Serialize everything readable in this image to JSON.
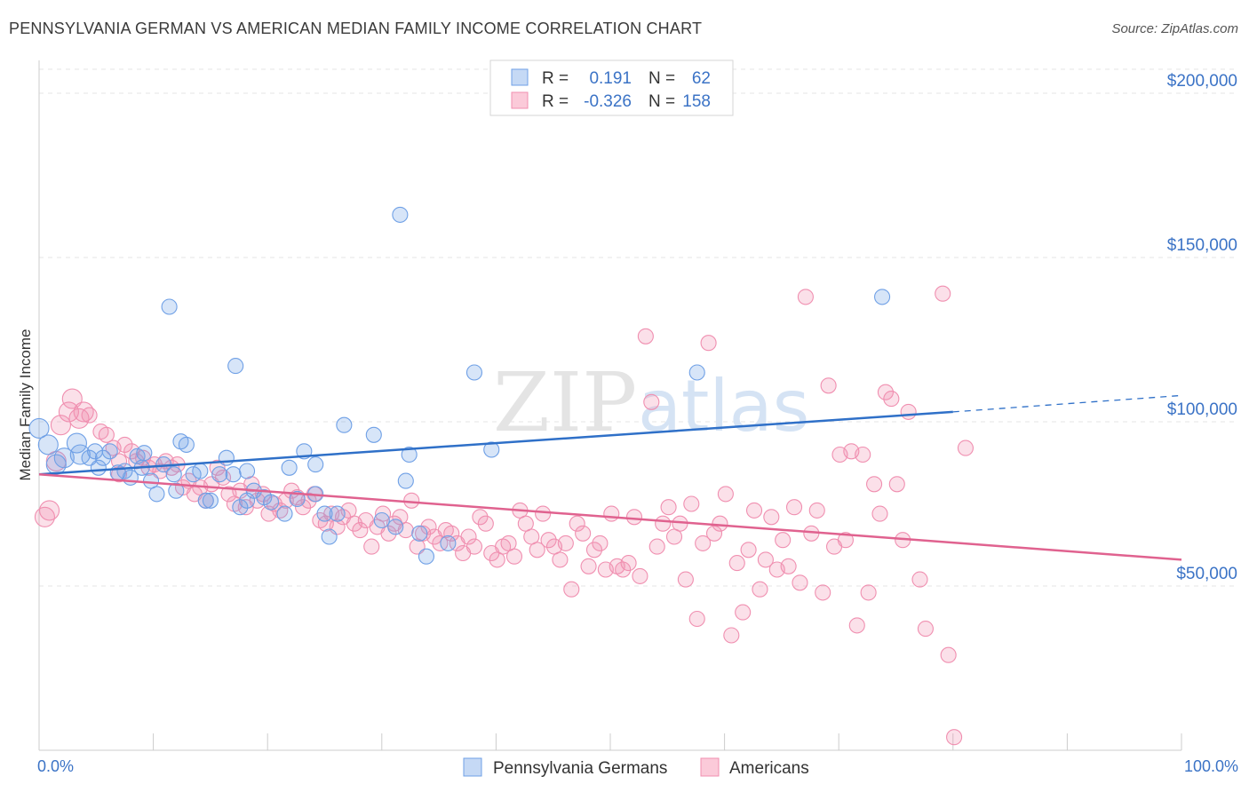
{
  "header": {
    "title": "PENNSYLVANIA GERMAN VS AMERICAN MEDIAN FAMILY INCOME CORRELATION CHART",
    "source": "Source: ZipAtlas.com"
  },
  "watermark": {
    "part1": "ZIP",
    "part2": "atlas"
  },
  "stats_legend": {
    "rows": [
      {
        "r_label": "R =",
        "r_value": "0.191",
        "n_label": "N =",
        "n_value": "62",
        "color": "#6fa0e6"
      },
      {
        "r_label": "R =",
        "r_value": "-0.326",
        "n_label": "N =",
        "n_value": "158",
        "color": "#f08fb0"
      }
    ]
  },
  "chart_data": {
    "type": "scatter",
    "title": "PENNSYLVANIA GERMAN VS AMERICAN MEDIAN FAMILY INCOME CORRELATION CHART",
    "xlabel": "",
    "ylabel": "Median Family Income",
    "xlim": [
      0,
      100
    ],
    "ylim": [
      0,
      210000
    ],
    "x_tick_labels": [
      "0.0%",
      "100.0%"
    ],
    "y_ticks": [
      50000,
      100000,
      150000,
      200000
    ],
    "y_tick_labels": [
      "$50,000",
      "$100,000",
      "$150,000",
      "$200,000"
    ],
    "grid": true,
    "legend_position": "bottom-center",
    "series": [
      {
        "name": "Pennsylvania Germans",
        "color": "#6fa0e6",
        "trend": {
          "x": [
            0,
            80
          ],
          "y": [
            84000,
            103000
          ],
          "dashed_extension_x": [
            80,
            100
          ],
          "dashed_extension_y": [
            103000,
            108000
          ]
        },
        "points": [
          [
            0,
            98000
          ],
          [
            0.8,
            93000
          ],
          [
            1.5,
            87000
          ],
          [
            2.2,
            89000
          ],
          [
            3.3,
            93500
          ],
          [
            3.6,
            90000
          ],
          [
            4.4,
            89000
          ],
          [
            4.9,
            91000
          ],
          [
            5.2,
            86000
          ],
          [
            5.6,
            89000
          ],
          [
            6.2,
            91000
          ],
          [
            6.9,
            84500
          ],
          [
            7.5,
            85000
          ],
          [
            8.0,
            83000
          ],
          [
            8.6,
            89500
          ],
          [
            9.2,
            90500
          ],
          [
            9.8,
            82000
          ],
          [
            10.3,
            78000
          ],
          [
            10.9,
            87000
          ],
          [
            11.4,
            135000
          ],
          [
            11.8,
            84000
          ],
          [
            12.4,
            94000
          ],
          [
            12.9,
            93000
          ],
          [
            13.5,
            84000
          ],
          [
            14.1,
            85000
          ],
          [
            14.6,
            76000
          ],
          [
            15.0,
            76000
          ],
          [
            15.8,
            84000
          ],
          [
            16.4,
            89000
          ],
          [
            17.0,
            84000
          ],
          [
            17.2,
            117000
          ],
          [
            17.6,
            74000
          ],
          [
            18.2,
            85000
          ],
          [
            18.8,
            79000
          ],
          [
            19.7,
            77000
          ],
          [
            20.3,
            75500
          ],
          [
            21.5,
            72000
          ],
          [
            21.9,
            86000
          ],
          [
            22.6,
            76500
          ],
          [
            23.2,
            91000
          ],
          [
            24.2,
            87000
          ],
          [
            24.2,
            78000
          ],
          [
            25.0,
            72000
          ],
          [
            25.4,
            65000
          ],
          [
            26.1,
            72000
          ],
          [
            26.7,
            99000
          ],
          [
            29.3,
            96000
          ],
          [
            30.0,
            70000
          ],
          [
            31.2,
            68000
          ],
          [
            31.6,
            163000
          ],
          [
            32.1,
            82000
          ],
          [
            32.4,
            90000
          ],
          [
            33.3,
            66000
          ],
          [
            33.9,
            59000
          ],
          [
            35.8,
            63000
          ],
          [
            38.1,
            115000
          ],
          [
            39.6,
            91500
          ],
          [
            57.6,
            115000
          ],
          [
            73.8,
            138000
          ],
          [
            18.2,
            76000
          ],
          [
            9.0,
            86000
          ],
          [
            12.0,
            79000
          ]
        ]
      },
      {
        "name": "Americans",
        "color": "#f08fb0",
        "trend": {
          "x": [
            0,
            100
          ],
          "y": [
            84000,
            58000
          ]
        },
        "points": [
          [
            0.5,
            71000
          ],
          [
            0.9,
            73000
          ],
          [
            1.5,
            88000
          ],
          [
            1.9,
            99000
          ],
          [
            2.6,
            103000
          ],
          [
            2.9,
            107000
          ],
          [
            3.5,
            101000
          ],
          [
            3.9,
            103000
          ],
          [
            4.4,
            102000
          ],
          [
            5.4,
            97000
          ],
          [
            5.9,
            96000
          ],
          [
            6.5,
            92000
          ],
          [
            7.0,
            88000
          ],
          [
            7.5,
            93000
          ],
          [
            8.1,
            91000
          ],
          [
            8.5,
            88000
          ],
          [
            9.1,
            89000
          ],
          [
            9.6,
            86000
          ],
          [
            10.1,
            87000
          ],
          [
            10.6,
            85000
          ],
          [
            11.1,
            88000
          ],
          [
            11.6,
            86000
          ],
          [
            12.1,
            87000
          ],
          [
            12.6,
            80000
          ],
          [
            13.1,
            82000
          ],
          [
            13.6,
            78000
          ],
          [
            14.1,
            80000
          ],
          [
            14.6,
            76000
          ],
          [
            15.1,
            81000
          ],
          [
            15.6,
            86000
          ],
          [
            16.1,
            83000
          ],
          [
            16.6,
            78000
          ],
          [
            17.1,
            75000
          ],
          [
            17.6,
            79000
          ],
          [
            18.1,
            74000
          ],
          [
            18.6,
            81000
          ],
          [
            19.1,
            76000
          ],
          [
            19.6,
            78000
          ],
          [
            20.1,
            72000
          ],
          [
            20.6,
            75000
          ],
          [
            21.1,
            73000
          ],
          [
            21.6,
            76000
          ],
          [
            22.1,
            79000
          ],
          [
            22.6,
            77000
          ],
          [
            23.1,
            74000
          ],
          [
            23.6,
            76000
          ],
          [
            24.1,
            78000
          ],
          [
            24.6,
            70000
          ],
          [
            25.1,
            69000
          ],
          [
            25.6,
            72000
          ],
          [
            26.1,
            68000
          ],
          [
            26.6,
            71000
          ],
          [
            27.1,
            73000
          ],
          [
            27.6,
            69000
          ],
          [
            28.1,
            67000
          ],
          [
            28.6,
            70000
          ],
          [
            29.1,
            62000
          ],
          [
            29.6,
            68000
          ],
          [
            30.1,
            72000
          ],
          [
            30.6,
            66000
          ],
          [
            31.1,
            69000
          ],
          [
            31.6,
            71000
          ],
          [
            32.1,
            67000
          ],
          [
            32.6,
            76000
          ],
          [
            33.1,
            62000
          ],
          [
            33.6,
            66000
          ],
          [
            34.1,
            68000
          ],
          [
            34.6,
            65000
          ],
          [
            35.1,
            63000
          ],
          [
            35.6,
            67000
          ],
          [
            36.1,
            66000
          ],
          [
            36.6,
            63000
          ],
          [
            37.1,
            60000
          ],
          [
            37.6,
            65000
          ],
          [
            38.1,
            62000
          ],
          [
            38.6,
            71000
          ],
          [
            39.1,
            69000
          ],
          [
            39.6,
            60000
          ],
          [
            40.1,
            58000
          ],
          [
            40.6,
            62000
          ],
          [
            41.1,
            63000
          ],
          [
            41.6,
            59000
          ],
          [
            42.1,
            73000
          ],
          [
            42.6,
            69000
          ],
          [
            43.1,
            65000
          ],
          [
            43.6,
            61000
          ],
          [
            44.1,
            72000
          ],
          [
            44.6,
            64000
          ],
          [
            45.1,
            62000
          ],
          [
            45.6,
            58000
          ],
          [
            46.1,
            63000
          ],
          [
            46.6,
            49000
          ],
          [
            47.1,
            69000
          ],
          [
            47.6,
            66000
          ],
          [
            48.1,
            56000
          ],
          [
            48.6,
            61000
          ],
          [
            49.1,
            63000
          ],
          [
            49.6,
            55000
          ],
          [
            50.1,
            72000
          ],
          [
            50.6,
            56000
          ],
          [
            51.1,
            55000
          ],
          [
            51.6,
            57000
          ],
          [
            52.1,
            71000
          ],
          [
            52.6,
            53000
          ],
          [
            53.1,
            126000
          ],
          [
            53.6,
            106000
          ],
          [
            54.1,
            62000
          ],
          [
            54.6,
            69000
          ],
          [
            55.1,
            74000
          ],
          [
            55.6,
            65000
          ],
          [
            56.1,
            69000
          ],
          [
            56.6,
            52000
          ],
          [
            57.1,
            75000
          ],
          [
            57.6,
            40000
          ],
          [
            58.1,
            63000
          ],
          [
            58.6,
            124000
          ],
          [
            59.1,
            66000
          ],
          [
            59.6,
            69000
          ],
          [
            60.1,
            78000
          ],
          [
            60.6,
            35000
          ],
          [
            61.1,
            57000
          ],
          [
            61.6,
            42000
          ],
          [
            62.1,
            61000
          ],
          [
            62.6,
            73000
          ],
          [
            63.1,
            49000
          ],
          [
            63.6,
            58000
          ],
          [
            64.1,
            71000
          ],
          [
            64.6,
            55000
          ],
          [
            65.1,
            64000
          ],
          [
            65.6,
            56000
          ],
          [
            66.1,
            74000
          ],
          [
            66.6,
            51000
          ],
          [
            67.1,
            138000
          ],
          [
            67.6,
            66000
          ],
          [
            68.1,
            73000
          ],
          [
            68.6,
            48000
          ],
          [
            69.1,
            111000
          ],
          [
            69.6,
            62000
          ],
          [
            70.1,
            90000
          ],
          [
            70.6,
            64000
          ],
          [
            71.1,
            91000
          ],
          [
            71.6,
            38000
          ],
          [
            72.1,
            90000
          ],
          [
            72.6,
            48000
          ],
          [
            73.1,
            81000
          ],
          [
            73.6,
            72000
          ],
          [
            74.1,
            109000
          ],
          [
            74.6,
            107000
          ],
          [
            75.1,
            81000
          ],
          [
            75.6,
            64000
          ],
          [
            76.1,
            103000
          ],
          [
            77.1,
            52000
          ],
          [
            77.6,
            37000
          ],
          [
            79.1,
            139000
          ],
          [
            79.6,
            29000
          ],
          [
            80.1,
            4000
          ],
          [
            81.1,
            92000
          ],
          [
            7.0,
            84000
          ]
        ]
      }
    ]
  }
}
